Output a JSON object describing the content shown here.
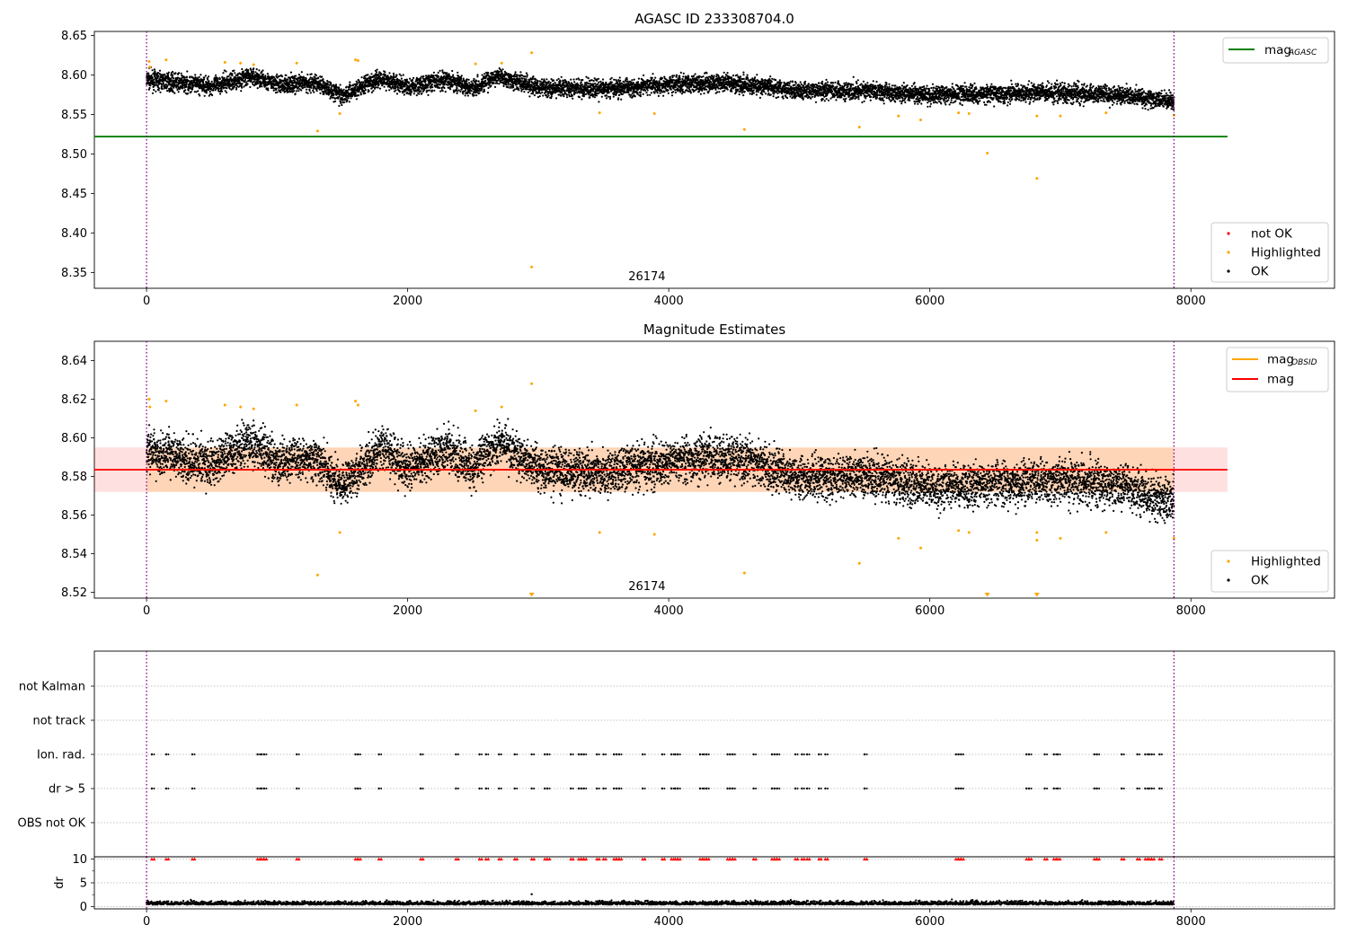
{
  "chart_data": [
    {
      "type": "scatter",
      "title": "AGASC ID 233308704.0",
      "xlim": [
        -400,
        9100
      ],
      "ylim": [
        8.33,
        8.655
      ],
      "xticks": [
        0,
        2000,
        4000,
        6000,
        8000
      ],
      "yticks": [
        8.35,
        8.4,
        8.45,
        8.5,
        8.55,
        8.6,
        8.65
      ],
      "grid": false,
      "vlines": [
        0,
        7870
      ],
      "mag_agasc": 8.522,
      "mag_agasc_range": [
        -400,
        8280
      ],
      "annotation": "26174",
      "annotation_x": 3950,
      "legend_top": {
        "position": "top-right",
        "entries": [
          {
            "label": "mag",
            "sub": "AGASC",
            "color": "#008000"
          }
        ]
      },
      "legend_bottom": {
        "position": "lower-right",
        "entries": [
          {
            "label": "not OK",
            "color": "#ff0000"
          },
          {
            "label": "Highlighted",
            "color": "#ffa500"
          },
          {
            "label": "OK",
            "color": "#000000"
          }
        ]
      },
      "series": [
        {
          "name": "OK",
          "color": "#000000",
          "trend": [
            [
              0,
              8.594
            ],
            [
              500,
              8.586
            ],
            [
              800,
              8.598
            ],
            [
              1000,
              8.588
            ],
            [
              1300,
              8.59
            ],
            [
              1500,
              8.574
            ],
            [
              1800,
              8.596
            ],
            [
              2000,
              8.584
            ],
            [
              2300,
              8.594
            ],
            [
              2500,
              8.584
            ],
            [
              2700,
              8.598
            ],
            [
              3000,
              8.584
            ],
            [
              3500,
              8.582
            ],
            [
              4000,
              8.588
            ],
            [
              4500,
              8.59
            ],
            [
              5000,
              8.58
            ],
            [
              5500,
              8.58
            ],
            [
              6000,
              8.575
            ],
            [
              6500,
              8.576
            ],
            [
              7000,
              8.578
            ],
            [
              7500,
              8.574
            ],
            [
              7870,
              8.566
            ]
          ],
          "scatter": 0.01
        },
        {
          "name": "Highlighted",
          "color": "#ffa500",
          "points": [
            [
              20,
              8.617
            ],
            [
              25,
              8.61
            ],
            [
              150,
              8.619
            ],
            [
              600,
              8.616
            ],
            [
              720,
              8.615
            ],
            [
              820,
              8.613
            ],
            [
              1150,
              8.615
            ],
            [
              1310,
              8.529
            ],
            [
              1480,
              8.551
            ],
            [
              1600,
              8.619
            ],
            [
              1620,
              8.618
            ],
            [
              2520,
              8.614
            ],
            [
              2720,
              8.615
            ],
            [
              2950,
              8.628
            ],
            [
              2950,
              8.357
            ],
            [
              3470,
              8.552
            ],
            [
              3890,
              8.551
            ],
            [
              4580,
              8.531
            ],
            [
              5460,
              8.534
            ],
            [
              5760,
              8.548
            ],
            [
              5930,
              8.543
            ],
            [
              6220,
              8.552
            ],
            [
              6300,
              8.551
            ],
            [
              6440,
              8.501
            ],
            [
              6820,
              8.469
            ],
            [
              6820,
              8.548
            ],
            [
              7000,
              8.548
            ],
            [
              7350,
              8.552
            ],
            [
              7870,
              8.549
            ]
          ]
        }
      ]
    },
    {
      "type": "scatter",
      "title": "Magnitude Estimates",
      "xlim": [
        -400,
        9100
      ],
      "ylim": [
        8.517,
        8.65
      ],
      "xticks": [
        0,
        2000,
        4000,
        6000,
        8000
      ],
      "yticks": [
        8.52,
        8.54,
        8.56,
        8.58,
        8.6,
        8.62,
        8.64
      ],
      "grid": false,
      "vlines": [
        0,
        7870
      ],
      "mag": 8.5835,
      "mag_band": [
        8.572,
        8.595
      ],
      "mag_obsid_range": [
        -400,
        8280
      ],
      "annotation": "26174",
      "annotation_x": 3950,
      "legend_top": {
        "position": "top-right",
        "entries": [
          {
            "label": "mag",
            "sub": "OBSID",
            "color": "#ffa500"
          },
          {
            "label": "mag",
            "sub": "",
            "color": "#ff0000"
          }
        ]
      },
      "legend_bottom": {
        "position": "lower-right",
        "entries": [
          {
            "label": "Highlighted",
            "color": "#ffa500"
          },
          {
            "label": "OK",
            "color": "#000000"
          }
        ]
      },
      "series": [
        {
          "name": "OK",
          "color": "#000000",
          "scatter": 0.01
        },
        {
          "name": "Highlighted",
          "color": "#ffa500",
          "points": [
            [
              20,
              8.62
            ],
            [
              25,
              8.616
            ],
            [
              150,
              8.619
            ],
            [
              600,
              8.617
            ],
            [
              720,
              8.616
            ],
            [
              820,
              8.615
            ],
            [
              1150,
              8.617
            ],
            [
              1310,
              8.529
            ],
            [
              1480,
              8.551
            ],
            [
              1600,
              8.619
            ],
            [
              1620,
              8.617
            ],
            [
              2520,
              8.614
            ],
            [
              2720,
              8.616
            ],
            [
              2950,
              8.628
            ],
            [
              3470,
              8.551
            ],
            [
              3890,
              8.55
            ],
            [
              4580,
              8.53
            ],
            [
              5460,
              8.535
            ],
            [
              5760,
              8.548
            ],
            [
              5930,
              8.543
            ],
            [
              6220,
              8.552
            ],
            [
              6300,
              8.551
            ],
            [
              6820,
              8.547
            ],
            [
              6820,
              8.551
            ],
            [
              7000,
              8.548
            ],
            [
              7350,
              8.551
            ],
            [
              7870,
              8.548
            ]
          ]
        },
        {
          "name": "Highlighted (out of range)",
          "color": "#ffa500",
          "marker": "triangle-down",
          "x": [
            2950,
            6440,
            6820
          ]
        }
      ]
    },
    {
      "type": "scatter",
      "title": "",
      "xlim": [
        -400,
        9100
      ],
      "xticks": [
        0,
        2000,
        4000,
        6000,
        8000
      ],
      "grid": "horizontal dotted",
      "vlines": [
        0,
        7870
      ],
      "categories": [
        "not Kalman",
        "not track",
        "Ion. rad.",
        "dr > 5",
        "OBS not OK"
      ],
      "flag_x": [
        40,
        150,
        350,
        850,
        880,
        900,
        1150,
        1600,
        1620,
        1780,
        2100,
        2370,
        2550,
        2600,
        2700,
        2820,
        2950,
        3050,
        3070,
        3250,
        3310,
        3330,
        3350,
        3450,
        3500,
        3580,
        3600,
        3620,
        3800,
        3950,
        4020,
        4050,
        4070,
        4240,
        4270,
        4290,
        4450,
        4470,
        4490,
        4650,
        4790,
        4810,
        4830,
        4970,
        5020,
        5060,
        5150,
        5200,
        5500,
        6200,
        6220,
        6240,
        6740,
        6760,
        6880,
        6950,
        6980,
        7260,
        7280,
        7470,
        7590,
        7650,
        7680,
        7700,
        7760
      ]
    },
    {
      "type": "scatter",
      "title": "",
      "xlim": [
        -400,
        9100
      ],
      "ylim": [
        -0.5,
        10.5
      ],
      "xticks": [
        0,
        2000,
        4000,
        6000,
        8000
      ],
      "yticks": [
        0,
        5,
        10
      ],
      "ylabel": "dr",
      "grid": "horizontal dotted",
      "vlines": [
        0,
        7870
      ],
      "series": [
        {
          "name": "dr",
          "color": "#000000",
          "level": 0.4
        },
        {
          "name": "dr > 10 (clipped)",
          "color": "#ff0000",
          "marker": "triangle-up",
          "value": 10
        }
      ]
    }
  ]
}
